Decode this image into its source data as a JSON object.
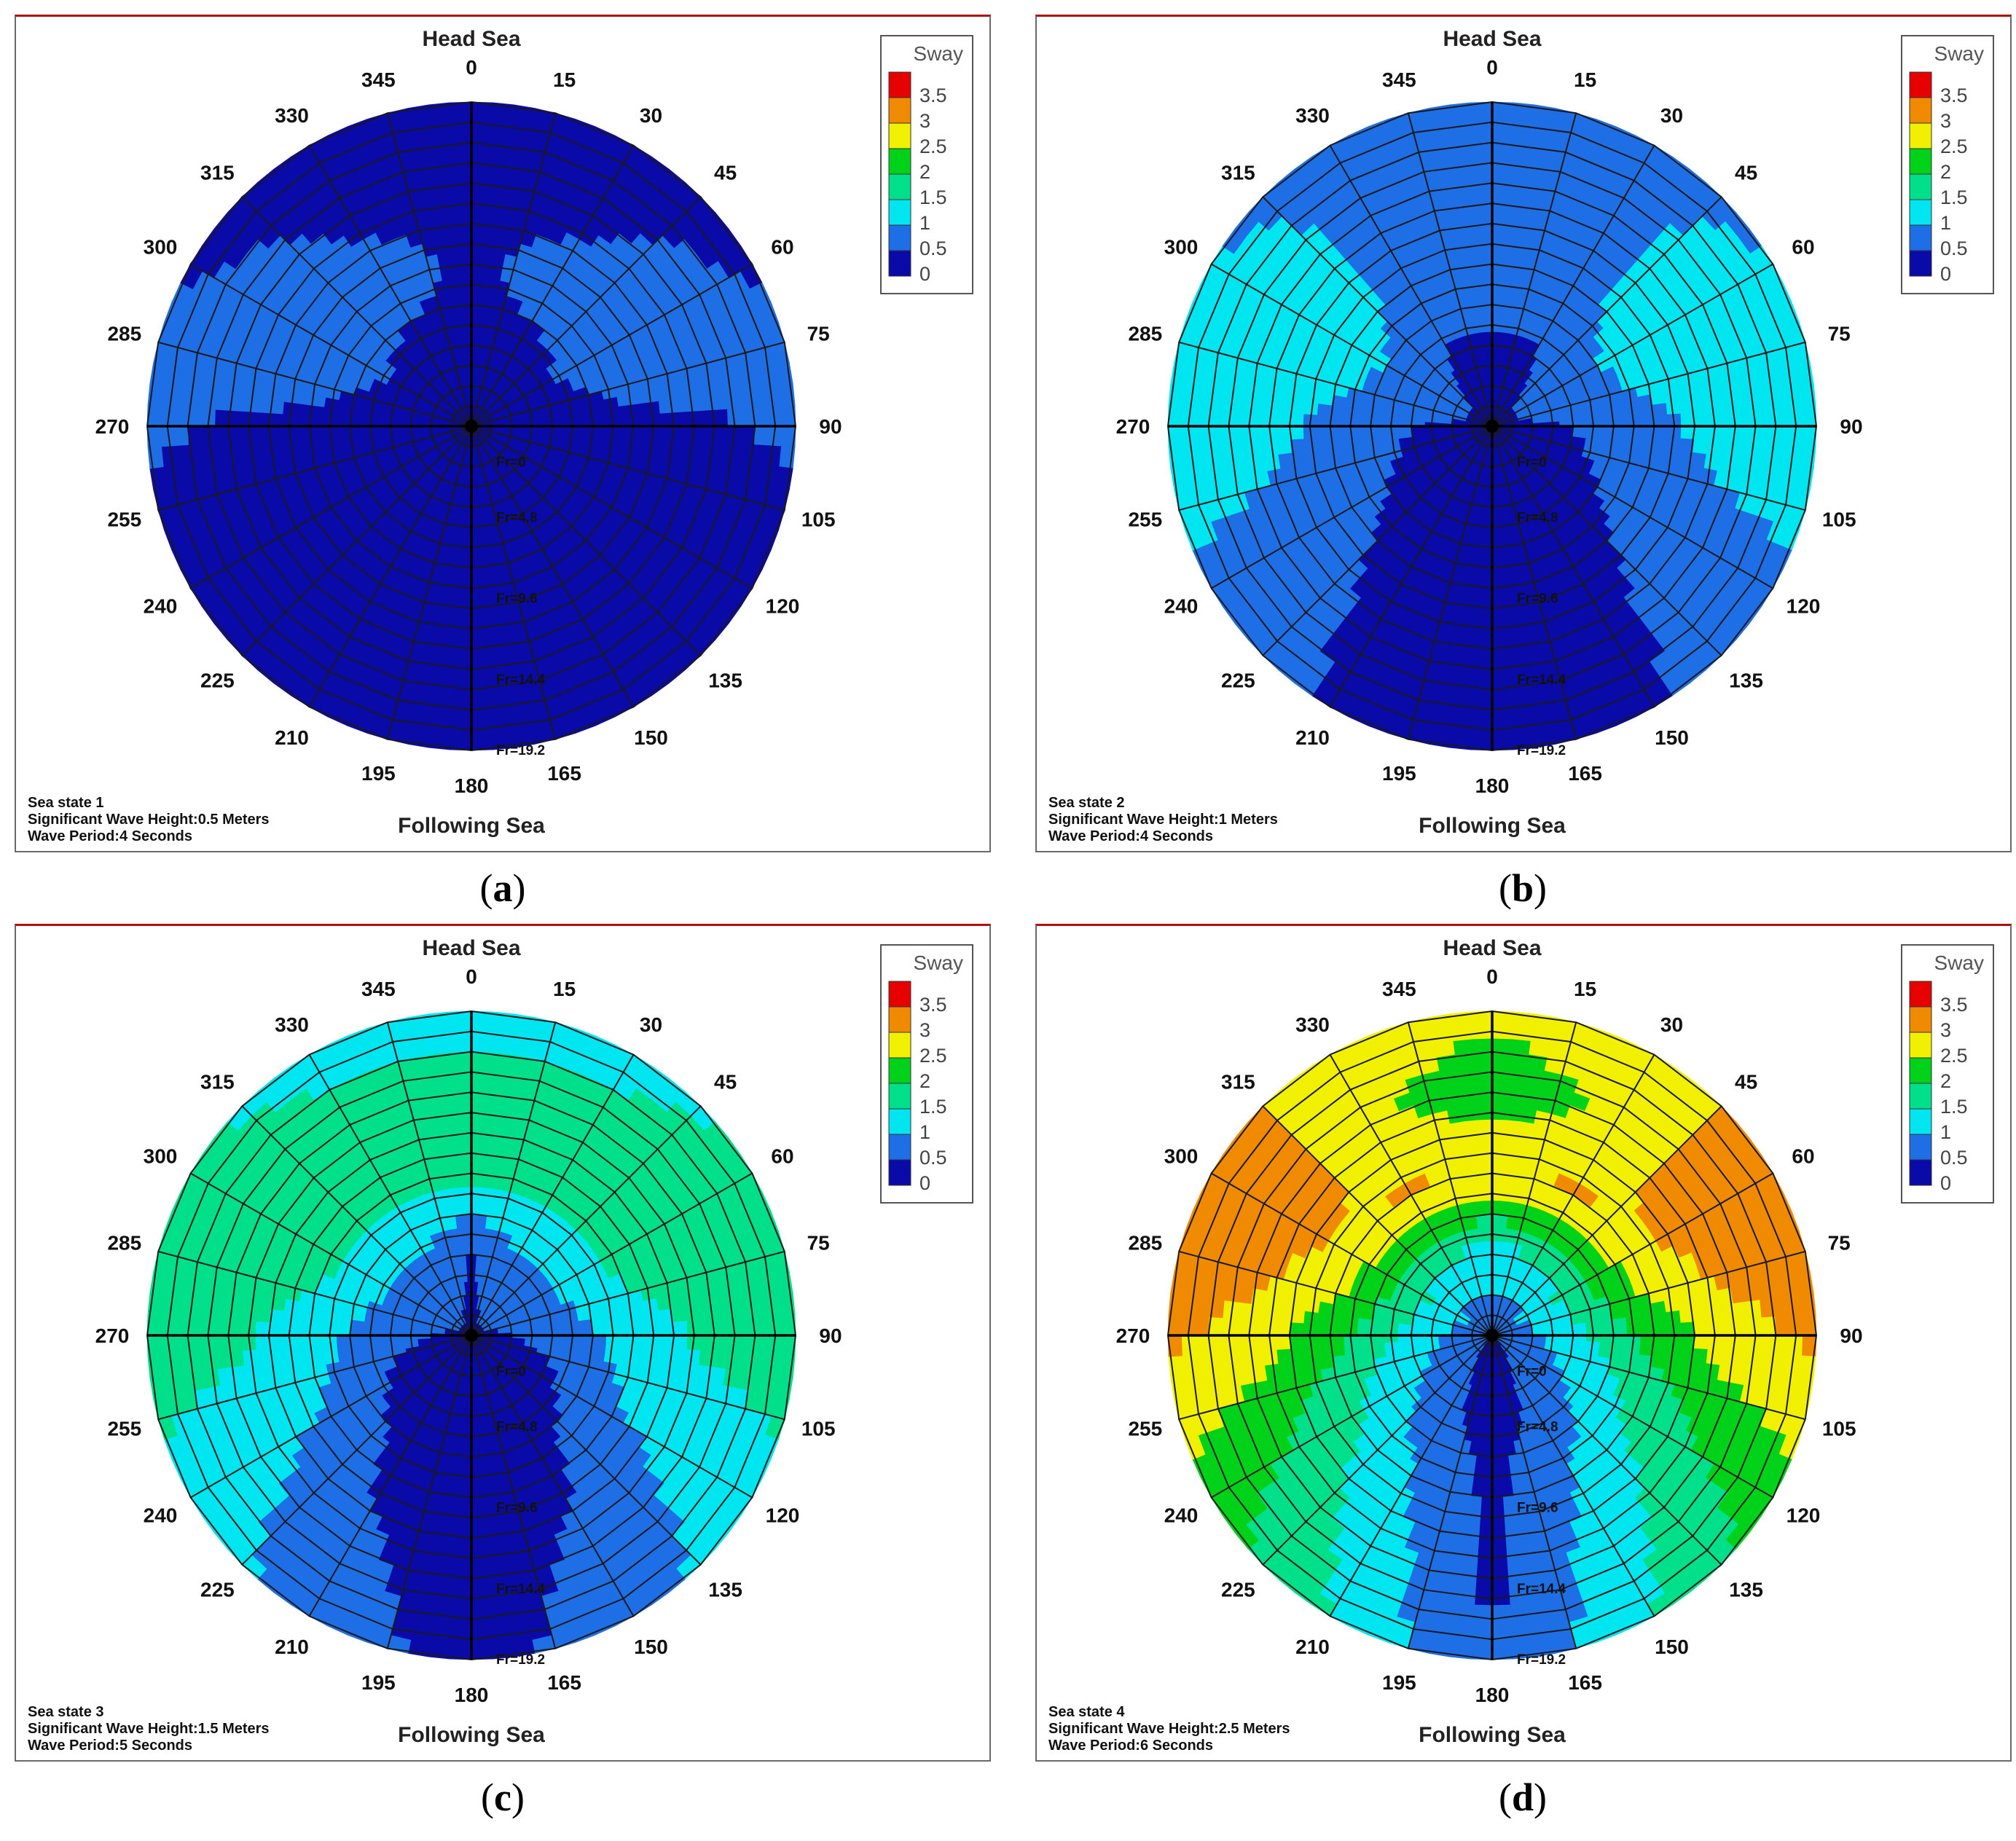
{
  "captions": [
    "a",
    "b",
    "c",
    "d"
  ],
  "chart_data": [
    {
      "type": "heatmap",
      "subtype": "polar",
      "legend_title": "Sway",
      "legend_ticks": [
        "3.5",
        "3",
        "2.5",
        "2",
        "1.5",
        "1",
        "0.5",
        "0"
      ],
      "top_label": "Head Sea",
      "bottom_label": "Following Sea",
      "angle_labels": [
        "180",
        "165",
        "150",
        "135",
        "120",
        "105",
        "90",
        "75",
        "60",
        "45",
        "30",
        "15",
        "0",
        "345",
        "330",
        "315",
        "300",
        "285",
        "270",
        "255",
        "240",
        "225",
        "210",
        "195"
      ],
      "froude_labels": [
        "Fr=0",
        "Fr=4.8",
        "Fr=9.6",
        "Fr=14.4",
        "Fr=19.2"
      ],
      "info": [
        "Sea state 1",
        "Significant Wave Height:0.5 Meters",
        "Wave Period:4 Seconds"
      ],
      "values_by_heading_radius": {
        "headings": [
          0,
          30,
          60,
          75,
          90,
          120,
          150,
          180
        ],
        "radii_fr": [
          0,
          4.8,
          9.6,
          14.4,
          19.2
        ],
        "values": [
          [
            0.3,
            0.4,
            0.45,
            0.4,
            0.4
          ],
          [
            0.3,
            0.4,
            0.6,
            0.45,
            0.4
          ],
          [
            0.3,
            0.45,
            0.7,
            0.6,
            0.45
          ],
          [
            0.3,
            0.4,
            0.6,
            0.7,
            0.6
          ],
          [
            0.3,
            0.3,
            0.4,
            0.45,
            0.55
          ],
          [
            0.25,
            0.25,
            0.3,
            0.35,
            0.4
          ],
          [
            0.2,
            0.2,
            0.25,
            0.3,
            0.3
          ],
          [
            0.2,
            0.2,
            0.2,
            0.2,
            0.2
          ]
        ]
      }
    },
    {
      "type": "heatmap",
      "subtype": "polar",
      "legend_title": "Sway",
      "legend_ticks": [
        "3.5",
        "3",
        "2.5",
        "2",
        "1.5",
        "1",
        "0.5",
        "0"
      ],
      "top_label": "Head Sea",
      "bottom_label": "Following Sea",
      "angle_labels": [
        "180",
        "165",
        "150",
        "135",
        "120",
        "105",
        "90",
        "75",
        "60",
        "45",
        "30",
        "15",
        "0",
        "345",
        "330",
        "315",
        "300",
        "285",
        "270",
        "255",
        "240",
        "225",
        "210",
        "195"
      ],
      "froude_labels": [
        "Fr=0",
        "Fr=4.8",
        "Fr=9.6",
        "Fr=14.4",
        "Fr=19.2"
      ],
      "info": [
        "Sea state 2",
        "Significant Wave Height:1 Meters",
        "Wave Period:4 Seconds"
      ],
      "values_by_heading_radius": {
        "headings": [
          0,
          30,
          60,
          75,
          90,
          120,
          150,
          180
        ],
        "radii_fr": [
          0,
          4.8,
          9.6,
          14.4,
          19.2
        ],
        "values": [
          [
            0.4,
            0.4,
            0.9,
            0.9,
            0.9
          ],
          [
            0.4,
            0.45,
            0.9,
            0.9,
            0.9
          ],
          [
            0.4,
            0.8,
            1.2,
            1.2,
            1.0
          ],
          [
            0.4,
            0.7,
            1.1,
            1.3,
            1.3
          ],
          [
            0.4,
            0.5,
            0.9,
            1.2,
            1.3
          ],
          [
            0.4,
            0.4,
            0.6,
            0.8,
            0.9
          ],
          [
            0.3,
            0.3,
            0.35,
            0.4,
            0.45
          ],
          [
            0.3,
            0.3,
            0.3,
            0.3,
            0.3
          ]
        ]
      }
    },
    {
      "type": "heatmap",
      "subtype": "polar",
      "legend_title": "Sway",
      "legend_ticks": [
        "3.5",
        "3",
        "2.5",
        "2",
        "1.5",
        "1",
        "0.5",
        "0"
      ],
      "top_label": "Head Sea",
      "bottom_label": "Following Sea",
      "angle_labels": [
        "180",
        "165",
        "150",
        "135",
        "120",
        "105",
        "90",
        "75",
        "60",
        "45",
        "30",
        "15",
        "0",
        "345",
        "330",
        "315",
        "300",
        "285",
        "270",
        "255",
        "240",
        "225",
        "210",
        "195"
      ],
      "froude_labels": [
        "Fr=0",
        "Fr=4.8",
        "Fr=9.6",
        "Fr=14.4",
        "Fr=19.2"
      ],
      "info": [
        "Sea state 3",
        "Significant Wave Height:1.5 Meters",
        "Wave Period:5 Seconds"
      ],
      "values_by_heading_radius": {
        "headings": [
          0,
          30,
          60,
          75,
          90,
          120,
          150,
          180
        ],
        "radii_fr": [
          0,
          4.8,
          9.6,
          14.4,
          19.2
        ],
        "values": [
          [
            0.4,
            0.45,
            1.6,
            1.7,
            1.3
          ],
          [
            0.4,
            0.9,
            1.6,
            1.7,
            1.3
          ],
          [
            0.4,
            0.9,
            1.6,
            1.8,
            1.6
          ],
          [
            0.4,
            0.8,
            1.5,
            1.7,
            1.8
          ],
          [
            0.4,
            0.6,
            1.3,
            1.6,
            1.8
          ],
          [
            0.4,
            0.4,
            0.9,
            1.2,
            1.3
          ],
          [
            0.3,
            0.3,
            0.4,
            0.6,
            0.8
          ],
          [
            0.3,
            0.3,
            0.3,
            0.3,
            0.3
          ]
        ]
      }
    },
    {
      "type": "heatmap",
      "subtype": "polar",
      "legend_title": "Sway",
      "legend_ticks": [
        "3.5",
        "3",
        "2.5",
        "2",
        "1.5",
        "1",
        "0.5",
        "0"
      ],
      "top_label": "Head Sea",
      "bottom_label": "Following Sea",
      "angle_labels": [
        "180",
        "165",
        "150",
        "135",
        "120",
        "105",
        "90",
        "75",
        "60",
        "45",
        "30",
        "15",
        "0",
        "345",
        "330",
        "315",
        "300",
        "285",
        "270",
        "255",
        "240",
        "225",
        "210",
        "195"
      ],
      "froude_labels": [
        "Fr=0",
        "Fr=4.8",
        "Fr=9.6",
        "Fr=14.4",
        "Fr=19.2"
      ],
      "info": [
        "Sea state 4",
        "Significant Wave Height:2.5 Meters",
        "Wave Period:6 Seconds"
      ],
      "values_by_heading_radius": {
        "headings": [
          0,
          30,
          60,
          75,
          90,
          120,
          150,
          180
        ],
        "radii_fr": [
          0,
          4.8,
          9.6,
          14.4,
          19.2
        ],
        "values": [
          [
            0.6,
            1.3,
            2.9,
            2.2,
            2.6
          ],
          [
            0.6,
            1.4,
            3.1,
            2.6,
            2.8
          ],
          [
            0.6,
            1.6,
            2.8,
            3.4,
            3.2
          ],
          [
            0.6,
            1.5,
            2.6,
            3.1,
            3.4
          ],
          [
            0.6,
            1.3,
            2.2,
            2.8,
            3.1
          ],
          [
            0.6,
            1.0,
            1.6,
            2.0,
            2.3
          ],
          [
            0.4,
            0.6,
            1.0,
            1.3,
            1.5
          ],
          [
            0.3,
            0.3,
            0.4,
            0.4,
            0.5
          ]
        ]
      }
    }
  ],
  "colors": {
    "scale": [
      "#0a0aa8",
      "#1e6ee6",
      "#00e6f0",
      "#00e08a",
      "#00d21a",
      "#f0f000",
      "#f08a00",
      "#e60000"
    ],
    "grid": "#1a1a1a"
  }
}
